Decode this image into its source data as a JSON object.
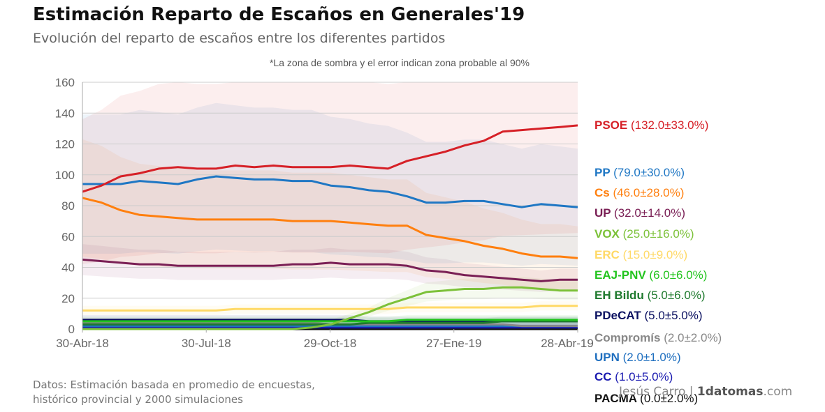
{
  "title": "Estimación Reparto de Escaños en Generales'19",
  "subtitle": "Evolución del reparto de escaños entre los diferentes partidos",
  "note": "*La zona de sombra y el error indican zona probable al 90%",
  "source_line1": "Datos: Estimación basada en promedio de encuestas,",
  "source_line2": "histórico provincial y 2000 simulaciones",
  "credit_author": "Jesús Carro |",
  "credit_site": "1datomas",
  "credit_tld": ".com",
  "chart_data": {
    "type": "line",
    "title": "Estimación Reparto de Escaños en Generales'19",
    "ylim": [
      0,
      160
    ],
    "yticks": [
      "0",
      "20",
      "40",
      "60",
      "80",
      "100",
      "120",
      "140",
      "160"
    ],
    "x_tick_labels": [
      "30-Abr-18",
      "30-Jul-18",
      "29-Oct-18",
      "27-Ene-19",
      "28-Abr-19"
    ],
    "x": [
      "2018-04-30",
      "2018-05-14",
      "2018-05-28",
      "2018-06-11",
      "2018-06-25",
      "2018-07-09",
      "2018-07-23",
      "2018-08-06",
      "2018-08-20",
      "2018-09-03",
      "2018-09-17",
      "2018-10-01",
      "2018-10-15",
      "2018-10-29",
      "2018-11-12",
      "2018-11-26",
      "2018-12-10",
      "2018-12-24",
      "2019-01-07",
      "2019-01-21",
      "2019-02-04",
      "2019-02-18",
      "2019-03-04",
      "2019-03-18",
      "2019-04-01",
      "2019-04-15",
      "2019-04-28"
    ],
    "grid": true,
    "legend_placement": "right",
    "series": [
      {
        "name": "PSOE",
        "label": "(132.0±33.0%)",
        "color": "#d62027",
        "band": 0.33,
        "values": [
          89,
          93,
          99,
          101,
          104,
          105,
          104,
          104,
          106,
          105,
          106,
          105,
          105,
          105,
          106,
          105,
          104,
          109,
          112,
          115,
          119,
          122,
          128,
          129,
          130,
          131,
          132
        ]
      },
      {
        "name": "PP",
        "label": "(79.0±30.0%)",
        "color": "#1f77c4",
        "band": 0.3,
        "values": [
          94,
          94,
          94,
          96,
          95,
          94,
          97,
          99,
          98,
          97,
          97,
          96,
          96,
          93,
          92,
          90,
          89,
          86,
          82,
          82,
          83,
          83,
          81,
          79,
          81,
          80,
          79
        ]
      },
      {
        "name": "Cs",
        "label": "(46.0±28.0%)",
        "color": "#ff7f0e",
        "band": 0.28,
        "values": [
          85,
          82,
          77,
          74,
          73,
          72,
          71,
          71,
          71,
          71,
          71,
          70,
          70,
          70,
          69,
          68,
          67,
          67,
          61,
          59,
          57,
          54,
          52,
          49,
          47,
          47,
          46
        ]
      },
      {
        "name": "UP",
        "label": "(32.0±14.0%)",
        "color": "#7a1f55",
        "band": 0.14,
        "values": [
          45,
          44,
          43,
          42,
          42,
          41,
          41,
          41,
          41,
          41,
          41,
          42,
          42,
          43,
          42,
          42,
          42,
          41,
          38,
          37,
          35,
          34,
          33,
          32,
          31,
          32,
          32
        ]
      },
      {
        "name": "VOX",
        "label": "(25.0±16.0%)",
        "color": "#7cc139",
        "band": 0.16,
        "values": [
          0,
          0,
          0,
          0,
          0,
          0,
          0,
          0,
          0,
          0,
          0,
          0,
          1,
          3,
          7,
          11,
          16,
          20,
          24,
          25,
          26,
          26,
          27,
          27,
          26,
          25,
          25
        ]
      },
      {
        "name": "ERC",
        "label": "(15.0±9.0%)",
        "color": "#ffd966",
        "band": 0.09,
        "values": [
          12,
          12,
          12,
          12,
          12,
          12,
          12,
          12,
          13,
          13,
          13,
          13,
          13,
          13,
          13,
          13,
          13,
          14,
          14,
          14,
          14,
          14,
          14,
          14,
          15,
          15,
          15
        ]
      },
      {
        "name": "EAJ-PNV",
        "label": "(6.0±6.0%)",
        "color": "#22c41e",
        "band": 0.06,
        "values": [
          5,
          5,
          5,
          5,
          5,
          5,
          5,
          5,
          5,
          5,
          5,
          5,
          5,
          5,
          5,
          5,
          5,
          6,
          6,
          6,
          6,
          6,
          6,
          6,
          6,
          6,
          6
        ]
      },
      {
        "name": "EH Bildu",
        "label": "(5.0±6.0%)",
        "color": "#1f7a2e",
        "band": 0.06,
        "values": [
          3,
          3,
          3,
          3,
          3,
          3,
          3,
          3,
          3,
          3,
          3,
          3,
          3,
          3,
          3,
          4,
          4,
          4,
          4,
          4,
          4,
          4,
          5,
          5,
          5,
          5,
          5
        ]
      },
      {
        "name": "PDeCAT",
        "label": "(5.0±5.0%)",
        "color": "#0a1060",
        "band": 0.05,
        "values": [
          6,
          6,
          6,
          6,
          6,
          6,
          6,
          6,
          6,
          6,
          6,
          6,
          6,
          6,
          6,
          5,
          5,
          5,
          5,
          5,
          5,
          5,
          5,
          5,
          5,
          5,
          5
        ]
      },
      {
        "name": "Compromís",
        "label": "(2.0±2.0%)",
        "color": "#888888",
        "band": 0.02,
        "values": [
          4,
          4,
          4,
          4,
          4,
          4,
          4,
          4,
          4,
          4,
          4,
          4,
          4,
          3,
          3,
          3,
          3,
          3,
          3,
          3,
          3,
          3,
          3,
          2,
          2,
          2,
          2
        ]
      },
      {
        "name": "UPN",
        "label": "(2.0±1.0%)",
        "color": "#1f6fbf",
        "band": 0.01,
        "values": [
          2,
          2,
          2,
          2,
          2,
          2,
          2,
          2,
          2,
          2,
          2,
          2,
          2,
          2,
          2,
          2,
          2,
          2,
          2,
          2,
          2,
          2,
          2,
          2,
          2,
          2,
          2
        ]
      },
      {
        "name": "CC",
        "label": "(1.0±5.0%)",
        "color": "#1a1ab0",
        "band": 0.05,
        "values": [
          1,
          1,
          1,
          1,
          1,
          1,
          1,
          1,
          1,
          1,
          1,
          1,
          1,
          1,
          1,
          1,
          1,
          1,
          1,
          1,
          1,
          1,
          1,
          1,
          1,
          1,
          1
        ]
      },
      {
        "name": "PACMA",
        "label": "(0.0±2.0%)",
        "color": "#111111",
        "band": 0.02,
        "values": [
          0,
          0,
          0,
          0,
          0,
          0,
          0,
          0,
          0,
          0,
          0,
          0,
          0,
          0,
          0,
          0,
          0,
          0,
          0,
          0,
          0,
          0,
          0,
          0,
          0,
          0,
          0
        ]
      }
    ]
  }
}
